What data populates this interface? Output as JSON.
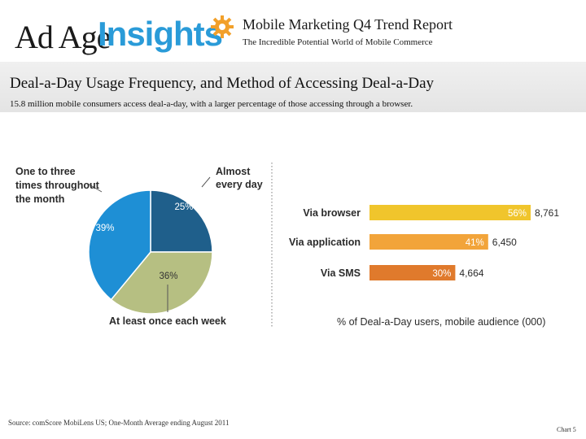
{
  "header": {
    "logo_part1": "Ad Age",
    "logo_part2": "Insights",
    "report_title": "Mobile Marketing Q4 Trend Report",
    "report_subtitle": "The Incredible Potential World of Mobile Commerce"
  },
  "page": {
    "title": "Deal-a-Day Usage Frequency, and Method of Accessing Deal-a-Day",
    "subtitle": "15.8 million mobile consumers access deal-a-day, with a larger percentage of those accessing through a browser."
  },
  "colors": {
    "pie_dark_blue": "#1f5f8b",
    "pie_green": "#b6bf82",
    "pie_light_blue": "#1e8fd5",
    "bar_browser": "#f0c52c",
    "bar_app": "#f2a43a",
    "bar_sms": "#e07a2c",
    "logo_blue": "#2a9bd8",
    "gear_orange": "#f2a02a"
  },
  "chart_data": [
    {
      "type": "pie",
      "slices": [
        {
          "label": "Almost every day",
          "value": 25,
          "display": "25%"
        },
        {
          "label": "At least once each week",
          "value": 36,
          "display": "36%"
        },
        {
          "label": "One to three times throughout the month",
          "value": 39,
          "display": "39%"
        }
      ],
      "label_lines": {
        "daily": [
          "Almost",
          "every day"
        ],
        "weekly": [
          "At least once each week"
        ],
        "monthly": [
          "One to three",
          "times throughout",
          "the month"
        ]
      }
    },
    {
      "type": "bar",
      "orientation": "horizontal",
      "categories": [
        "Via browser",
        "Via application",
        "Via SMS"
      ],
      "percent_labels": [
        "56%",
        "41%",
        "30%"
      ],
      "values": [
        8761,
        6450,
        4664
      ],
      "value_labels": [
        "8,761",
        "6,450",
        "4,664"
      ],
      "xlabel": "% of Deal-a-Day users, mobile audience (000)"
    }
  ],
  "footer": {
    "source": "Source: comScore MobiLens US; One-Month Average ending August 2011",
    "chart_number": "Chart 5"
  }
}
